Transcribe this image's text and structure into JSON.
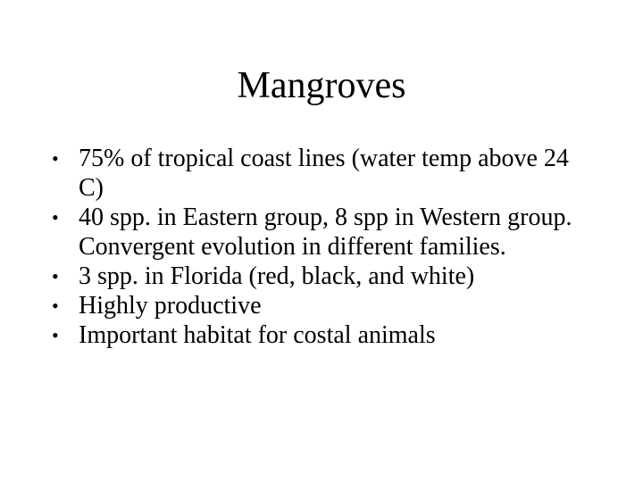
{
  "slide": {
    "title": "Mangroves",
    "bullet_glyph": "•",
    "bullets": [
      "75% of tropical coast lines (water temp above 24 C)",
      "40 spp. in Eastern group, 8 spp in Western group. Convergent evolution in different families.",
      "3 spp. in Florida (red, black, and white)",
      "Highly productive",
      "Important habitat for costal animals"
    ]
  }
}
